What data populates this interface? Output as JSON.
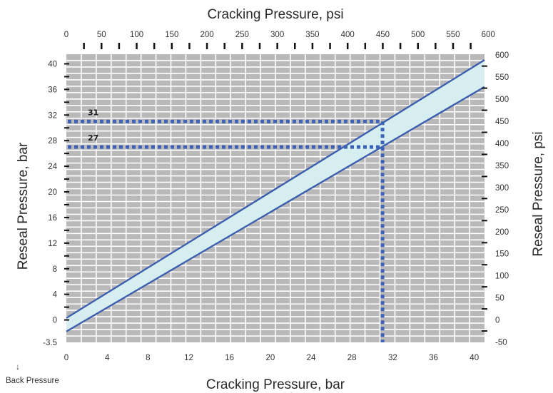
{
  "chart_data": {
    "type": "line",
    "title": "Cracking Pressure, psi",
    "xlabel": "Cracking Pressure, bar",
    "ylabel": "Reseal Pressure, bar",
    "y2label": "Reseal Pressure, psi",
    "xlim": [
      0,
      41
    ],
    "ylim": [
      -3.5,
      41.5
    ],
    "x_ticks": [
      "0",
      "4",
      "8",
      "12",
      "16",
      "20",
      "24",
      "28",
      "32",
      "36",
      "40"
    ],
    "x_top_ticks": [
      "0",
      "50",
      "100",
      "150",
      "200",
      "250",
      "300",
      "350",
      "400",
      "450",
      "500",
      "550",
      "600"
    ],
    "y_ticks": [
      "-3.5",
      "0",
      "4",
      "8",
      "12",
      "16",
      "20",
      "24",
      "28",
      "32",
      "36",
      "40"
    ],
    "y2_ticks": [
      "-50",
      "0",
      "50",
      "100",
      "150",
      "200",
      "250",
      "300",
      "350",
      "400",
      "450",
      "500",
      "550",
      "600"
    ],
    "grid": true,
    "series": [
      {
        "x": [
          0,
          41
        ],
        "y": [
          0.3,
          40.6
        ]
      },
      {
        "x": [
          0,
          41
        ],
        "y": [
          -1.8,
          36.4
        ]
      }
    ],
    "band_color": "#d6eef0",
    "line_color": "#3d5fae",
    "grid_color": "#b9b9b9",
    "annotations": [
      {
        "label": "31",
        "x_from": 0,
        "x_to": 31,
        "y": 31
      },
      {
        "label": "27",
        "x_from": 0,
        "x_to": 31,
        "y": 27
      },
      {
        "x": 31,
        "y_from": -3.5,
        "y_to": 31
      }
    ],
    "footnote": "Back Pressure",
    "footnote_arrow": "↓"
  }
}
